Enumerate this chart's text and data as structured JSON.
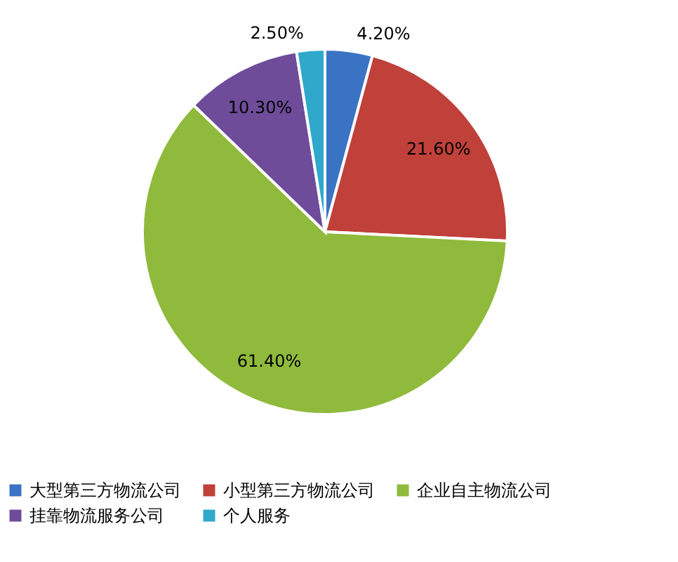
{
  "chart_data": {
    "type": "pie",
    "categories": [
      "大型第三方物流公司",
      "小型第三方物流公司",
      "企业自主物流公司",
      "挂靠物流服务公司",
      "个人服务"
    ],
    "values": [
      4.2,
      21.6,
      61.4,
      10.3,
      2.5
    ],
    "value_labels": [
      "4.20%",
      "21.60%",
      "61.40%",
      "10.30%",
      "2.50%"
    ],
    "colors": [
      "#3b73c4",
      "#c0403a",
      "#8fba3c",
      "#6e4c9a",
      "#2fa8cc"
    ],
    "legend": "bottom"
  }
}
